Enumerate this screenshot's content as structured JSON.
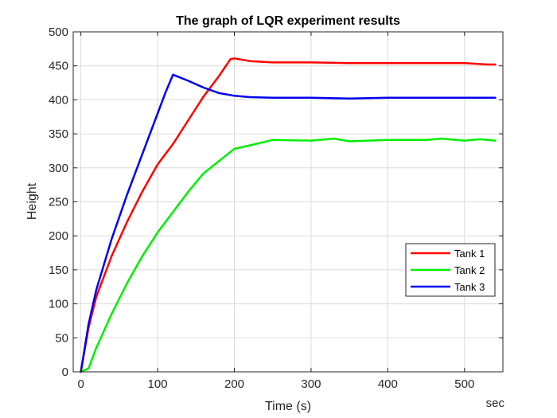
{
  "chart_data": {
    "type": "line",
    "title": "The graph of LQR experiment results",
    "xlabel": "Time (s)",
    "ylabel": "Height",
    "x_unit_note": "sec",
    "xlim": [
      -10,
      550
    ],
    "ylim": [
      0,
      500
    ],
    "xticks": [
      0,
      100,
      200,
      300,
      400,
      500
    ],
    "yticks": [
      0,
      50,
      100,
      150,
      200,
      250,
      300,
      350,
      400,
      450,
      500
    ],
    "grid": true,
    "legend_position": "lower-right",
    "series": [
      {
        "name": "Tank 1",
        "color": "#ff0000",
        "x": [
          0,
          10,
          20,
          40,
          60,
          80,
          100,
          120,
          140,
          160,
          180,
          195,
          200,
          220,
          250,
          300,
          350,
          400,
          450,
          500,
          530,
          540
        ],
        "y": [
          0,
          65,
          110,
          170,
          220,
          265,
          305,
          335,
          370,
          405,
          435,
          460,
          461,
          457,
          455,
          455,
          454,
          454,
          454,
          454,
          452,
          452
        ]
      },
      {
        "name": "Tank 2",
        "color": "#00ee00",
        "x": [
          0,
          10,
          20,
          40,
          60,
          80,
          100,
          120,
          140,
          160,
          180,
          200,
          220,
          250,
          300,
          330,
          350,
          400,
          450,
          470,
          500,
          520,
          540
        ],
        "y": [
          0,
          5,
          35,
          85,
          130,
          170,
          205,
          235,
          265,
          292,
          310,
          328,
          333,
          341,
          340,
          343,
          339,
          341,
          341,
          343,
          340,
          342,
          340
        ]
      },
      {
        "name": "Tank 3",
        "color": "#0000ee",
        "x": [
          0,
          10,
          20,
          40,
          60,
          80,
          100,
          110,
          120,
          140,
          160,
          180,
          200,
          220,
          250,
          300,
          350,
          400,
          450,
          500,
          540
        ],
        "y": [
          0,
          70,
          120,
          195,
          260,
          320,
          380,
          410,
          437,
          428,
          418,
          410,
          406,
          404,
          403,
          403,
          402,
          403,
          403,
          403,
          403
        ]
      }
    ]
  }
}
